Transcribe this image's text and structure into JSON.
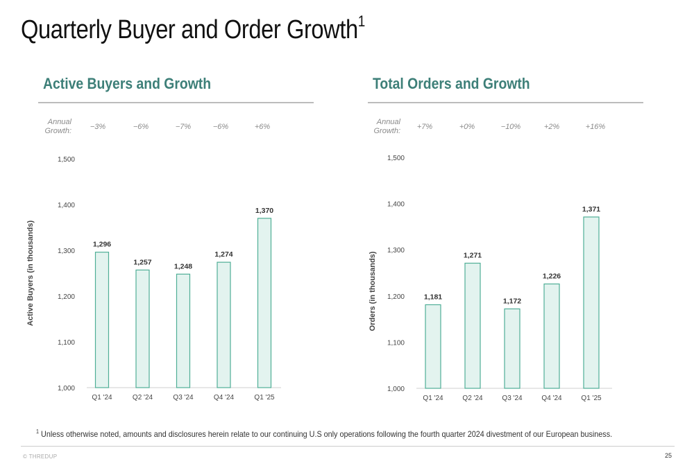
{
  "slide": {
    "title": "Quarterly Buyer and Order Growth",
    "title_superscript": "1",
    "footnote_marker": "1",
    "footnote": "Unless otherwise noted, amounts and disclosures herein relate to our continuing U.S only operations following the fourth quarter 2024 divestment of our European business.",
    "brand": "© THREDUP",
    "page_number": "25"
  },
  "colors": {
    "accent": "#3d7f78",
    "bar_fill": "#e3f3ef",
    "bar_stroke": "#4fae96",
    "grey_text": "#8a8a8a"
  },
  "left_panel": {
    "title": "Active Buyers and Growth",
    "growth_label_line1": "Annual",
    "growth_label_line2": "Growth:",
    "growth": [
      "−3%",
      "−6%",
      "−7%",
      "−6%",
      "+6%"
    ]
  },
  "right_panel": {
    "title": "Total Orders and Growth",
    "growth_label_line1": "Annual",
    "growth_label_line2": "Growth:",
    "growth": [
      "+7%",
      "+0%",
      "−10%",
      "+2%",
      "+16%"
    ]
  },
  "chart_data": [
    {
      "type": "bar",
      "title": "Active Buyers and Growth",
      "categories": [
        "Q1 '24",
        "Q2 '24",
        "Q3 '24",
        "Q4 '24",
        "Q1 '25"
      ],
      "values": [
        1296,
        1257,
        1248,
        1274,
        1370
      ],
      "data_labels": [
        "1,296",
        "1,257",
        "1,248",
        "1,274",
        "1,370"
      ],
      "ylabel": "Active Buyers (in thousands)",
      "xlabel": "",
      "ylim": [
        1000,
        1500
      ],
      "yticks": [
        1000,
        1100,
        1200,
        1300,
        1400,
        1500
      ],
      "ytick_labels": [
        "1,000",
        "1,100",
        "1,200",
        "1,300",
        "1,400",
        "1,500"
      ],
      "grid": false
    },
    {
      "type": "bar",
      "title": "Total Orders and Growth",
      "categories": [
        "Q1 '24",
        "Q2 '24",
        "Q3 '24",
        "Q4 '24",
        "Q1 '25"
      ],
      "values": [
        1181,
        1271,
        1172,
        1226,
        1371
      ],
      "data_labels": [
        "1,181",
        "1,271",
        "1,172",
        "1,226",
        "1,371"
      ],
      "ylabel": "Orders (in thousands)",
      "xlabel": "",
      "ylim": [
        1000,
        1500
      ],
      "yticks": [
        1000,
        1100,
        1200,
        1300,
        1400,
        1500
      ],
      "ytick_labels": [
        "1,000",
        "1,100",
        "1,200",
        "1,300",
        "1,400",
        "1,500"
      ],
      "grid": false
    }
  ]
}
